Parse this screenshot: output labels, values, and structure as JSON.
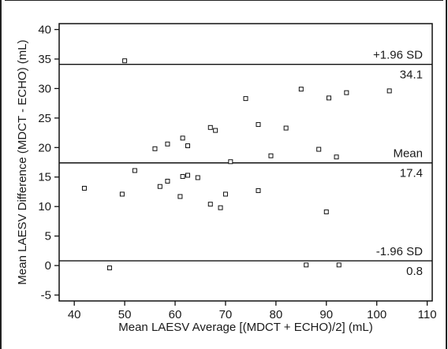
{
  "chart_data": {
    "type": "scatter",
    "xlabel": "Mean LAESV Average  [(MDCT + ECHO)/2] (mL)",
    "ylabel": "Mean LAESV Difference (MDCT - ECHO) (mL)",
    "xlim": [
      37,
      111
    ],
    "ylim": [
      -6,
      41
    ],
    "x_ticks": [
      40,
      50,
      60,
      70,
      80,
      90,
      100,
      110
    ],
    "y_ticks": [
      -5,
      0,
      5,
      10,
      15,
      20,
      25,
      30,
      35,
      40
    ],
    "grid": false,
    "marker": "open-square",
    "reference_lines": [
      {
        "label": "+1.96 SD",
        "value": 34.1,
        "value_text": "34.1"
      },
      {
        "label": "Mean",
        "value": 17.4,
        "value_text": "17.4"
      },
      {
        "label": "-1.96 SD",
        "value": 0.8,
        "value_text": "0.8"
      }
    ],
    "points": [
      {
        "x": 42,
        "y": 13.1
      },
      {
        "x": 47,
        "y": -0.4
      },
      {
        "x": 49.5,
        "y": 12.1
      },
      {
        "x": 50,
        "y": 34.7
      },
      {
        "x": 52,
        "y": 16.1
      },
      {
        "x": 56,
        "y": 19.8
      },
      {
        "x": 57,
        "y": 13.4
      },
      {
        "x": 58.5,
        "y": 20.6
      },
      {
        "x": 58.5,
        "y": 14.3
      },
      {
        "x": 61,
        "y": 11.7
      },
      {
        "x": 61.5,
        "y": 21.6
      },
      {
        "x": 61.5,
        "y": 15.1
      },
      {
        "x": 62.5,
        "y": 20.3
      },
      {
        "x": 62.5,
        "y": 15.3
      },
      {
        "x": 64.5,
        "y": 14.9
      },
      {
        "x": 67,
        "y": 23.4
      },
      {
        "x": 67,
        "y": 10.4
      },
      {
        "x": 68,
        "y": 22.9
      },
      {
        "x": 69,
        "y": 9.8
      },
      {
        "x": 70,
        "y": 12.1
      },
      {
        "x": 71,
        "y": 17.6
      },
      {
        "x": 74,
        "y": 28.3
      },
      {
        "x": 76.5,
        "y": 23.9
      },
      {
        "x": 76.5,
        "y": 12.7
      },
      {
        "x": 79,
        "y": 18.6
      },
      {
        "x": 82,
        "y": 23.3
      },
      {
        "x": 85,
        "y": 29.9
      },
      {
        "x": 86,
        "y": 0.1
      },
      {
        "x": 88.5,
        "y": 19.7
      },
      {
        "x": 90,
        "y": 9.1
      },
      {
        "x": 90.5,
        "y": 28.4
      },
      {
        "x": 92,
        "y": 18.4
      },
      {
        "x": 92.5,
        "y": 0.1
      },
      {
        "x": 94,
        "y": 29.3
      },
      {
        "x": 102.5,
        "y": 29.6
      }
    ]
  }
}
